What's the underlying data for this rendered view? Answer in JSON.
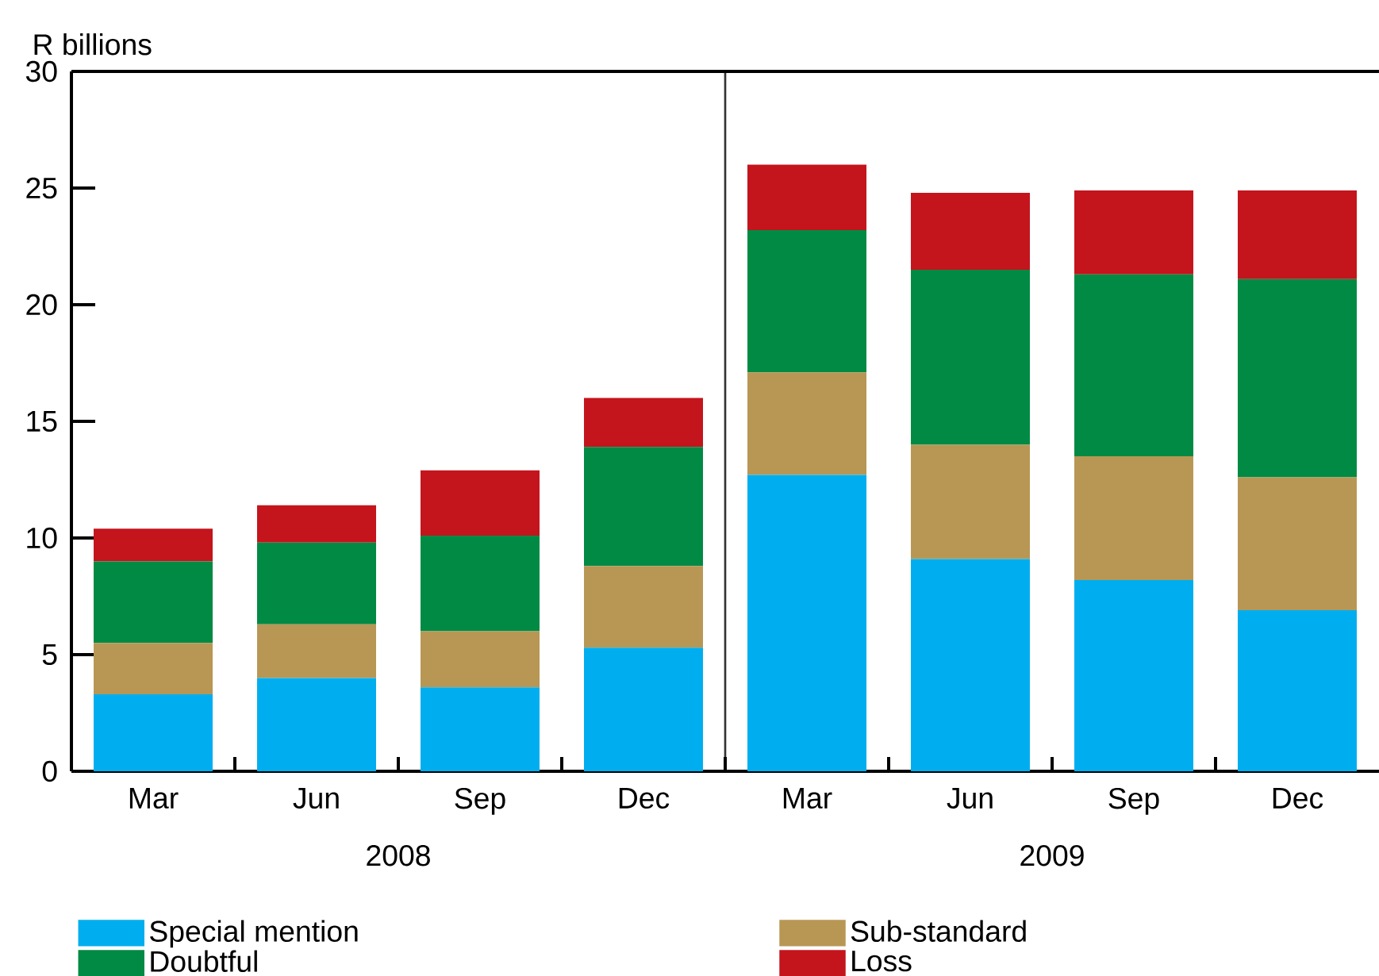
{
  "chart_data": {
    "type": "bar",
    "stacked": true,
    "ylabel": "R billions",
    "categories": [
      "Mar",
      "Jun",
      "Sep",
      "Dec",
      "Mar",
      "Jun",
      "Sep",
      "Dec"
    ],
    "series": [
      {
        "name": "Special mention",
        "color": "#00aeef",
        "values": [
          3.3,
          4.0,
          3.6,
          5.3,
          12.7,
          9.1,
          8.2,
          6.9
        ]
      },
      {
        "name": "Sub-standard",
        "color": "#b89754",
        "values": [
          2.2,
          2.3,
          2.4,
          3.5,
          4.4,
          4.9,
          5.3,
          5.7
        ]
      },
      {
        "name": "Doubtful",
        "color": "#008a43",
        "values": [
          3.5,
          3.5,
          4.1,
          5.1,
          6.1,
          7.5,
          7.8,
          8.5
        ]
      },
      {
        "name": "Loss",
        "color": "#c4141c",
        "values": [
          1.4,
          1.6,
          2.8,
          2.1,
          2.8,
          3.3,
          3.6,
          3.8
        ]
      }
    ],
    "ylim": [
      0,
      30
    ],
    "yticks": [
      0,
      5,
      10,
      15,
      20,
      25,
      30
    ],
    "annotations": [
      "2008",
      "2009"
    ],
    "legend": "bottom"
  }
}
